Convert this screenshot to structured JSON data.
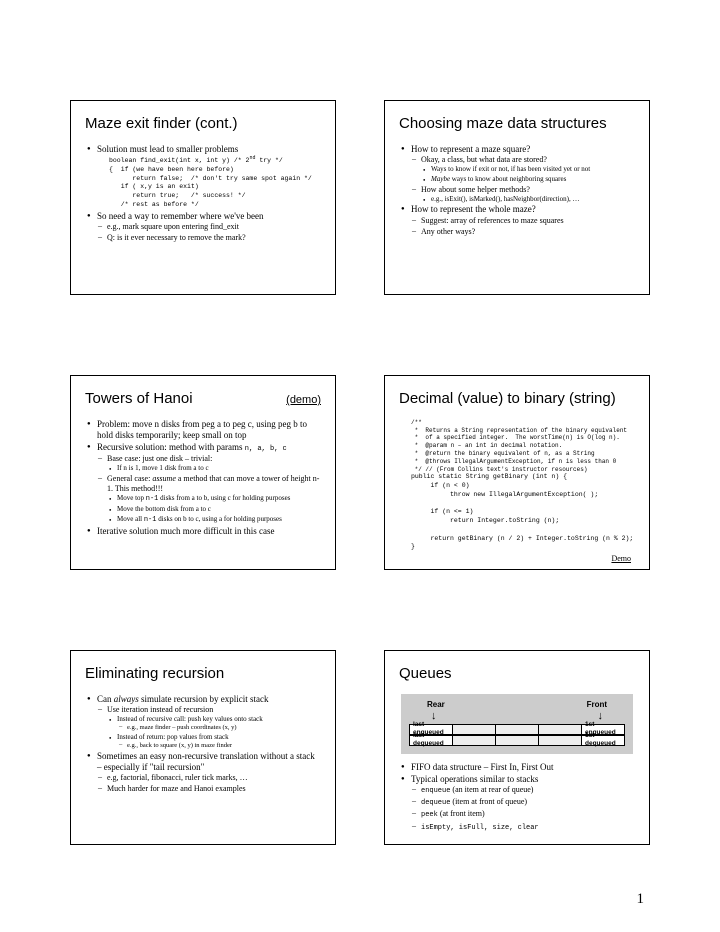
{
  "page_number": "1",
  "slides": {
    "s1": {
      "title": "Maze exit finder (cont.)",
      "b1": "Solution must lead to smaller problems",
      "code1": "boolean find_exit(int x, int y) /* 2",
      "code1b": " try */",
      "code2": "{  if (we have been here before)",
      "code3": "      return false;  /* don't try same spot again */",
      "code4": "   if ( x,y is an exit)",
      "code5": "      return true;   /* success! */",
      "code6": "   /* rest as before */",
      "b2": "So need a way to remember where we've been",
      "b2a": "e.g., mark square upon entering find_exit",
      "b2b": "Q: is it ever necessary to remove the mark?"
    },
    "s2": {
      "title": "Choosing maze data structures",
      "b1": "How to represent a maze square?",
      "b1a": "Okay, a class, but what data are stored?",
      "b1a1": "Ways to know if exit or not, if has been visited yet or not",
      "b1a2_pre": "Maybe",
      "b1a2": " ways to know about neighboring squares",
      "b1b": "How about some helper methods?",
      "b1b1": "e.g., isExit(), isMarked(), hasNeighbor(direction), …",
      "b2": "How to represent the whole maze?",
      "b2a": "Suggest: array of references to maze squares",
      "b2b": "Any other ways?"
    },
    "s3": {
      "title": "Towers of Hanoi",
      "demo": "(demo)",
      "b1": "Problem: move n disks from peg a to peg c, using peg b to hold disks temporarily; keep small on top",
      "b2": "Recursive solution: method with params ",
      "b2code": "n, a, b, c",
      "b2a": "Base case: just one disk – trivial:",
      "b2a1": "If n is 1, move 1 disk from a to c",
      "b2b_pre": "General case: ",
      "b2b_em": "assume",
      "b2b_post": " a method that can move a tower of height n-1.  This method!!!",
      "b2b1a": "Move top ",
      "b2b1code": "n-1",
      "b2b1b": " disks from a to b, using c for holding purposes",
      "b2b2": "Move the bottom disk from a to c",
      "b2b3a": "Move all ",
      "b2b3code": "n-1",
      "b2b3b": " disks on b to c, using a for holding purposes",
      "b3": "Iterative solution much more difficult in this case"
    },
    "s4": {
      "title": "Decimal (value) to binary (string)",
      "comment": "/**\n *  Returns a String representation of the binary equivalent\n *  of a specified integer.  The worstTime(n) is O(log n).\n *  @param n – an int in decimal notation.\n *  @return the binary equivalent of n, as a String\n *  @throws IllegalArgumentException, if n is less than 0\n */ // (From Collins text's instructor resources)",
      "code": "public static String getBinary (int n) {\n     if (n < 0)\n          throw new IllegalArgumentException( );\n\n     if (n <= 1)\n          return Integer.toString (n);\n\n     return getBinary (n / 2) + Integer.toString (n % 2);\n}",
      "demo": "Demo"
    },
    "s5": {
      "title": "Eliminating recursion",
      "b1_pre": "Can ",
      "b1_em": "always",
      "b1_post": " simulate recursion by explicit stack",
      "b1a": "Use iteration instead of recursion",
      "b1a1": "Instead of recursive call: push key values onto stack",
      "b1a1x": "e.g., maze finder – push coordinates (x, y)",
      "b1a2": "Instead of return: pop values from stack",
      "b1a2x": "e.g., back to square (x, y) in maze finder",
      "b2": "Sometimes an easy non-recursive translation without a stack – especially if \"tail recursion\"",
      "b2a": "e.g, factorial, fibonacci, ruler tick marks, …",
      "b2b": "Much harder for maze and Hanoi examples"
    },
    "s6": {
      "title": "Queues",
      "rear": "Rear",
      "front": "Front",
      "c1a": "last enqueued",
      "c1b": "last dequeued",
      "c5a": "1st enqueued",
      "c5b": "1st dequeued",
      "b1": "FIFO data structure – First In, First Out",
      "b2": "Typical operations similar to stacks",
      "b2a_code": "enqueue",
      "b2a": " (an item at rear of queue)",
      "b2b_code": "dequeue",
      "b2b": " (item at front of queue)",
      "b2c_code": "peek",
      "b2c": " (at front item)",
      "b2d": "isEmpty, isFull, size, clear"
    }
  }
}
